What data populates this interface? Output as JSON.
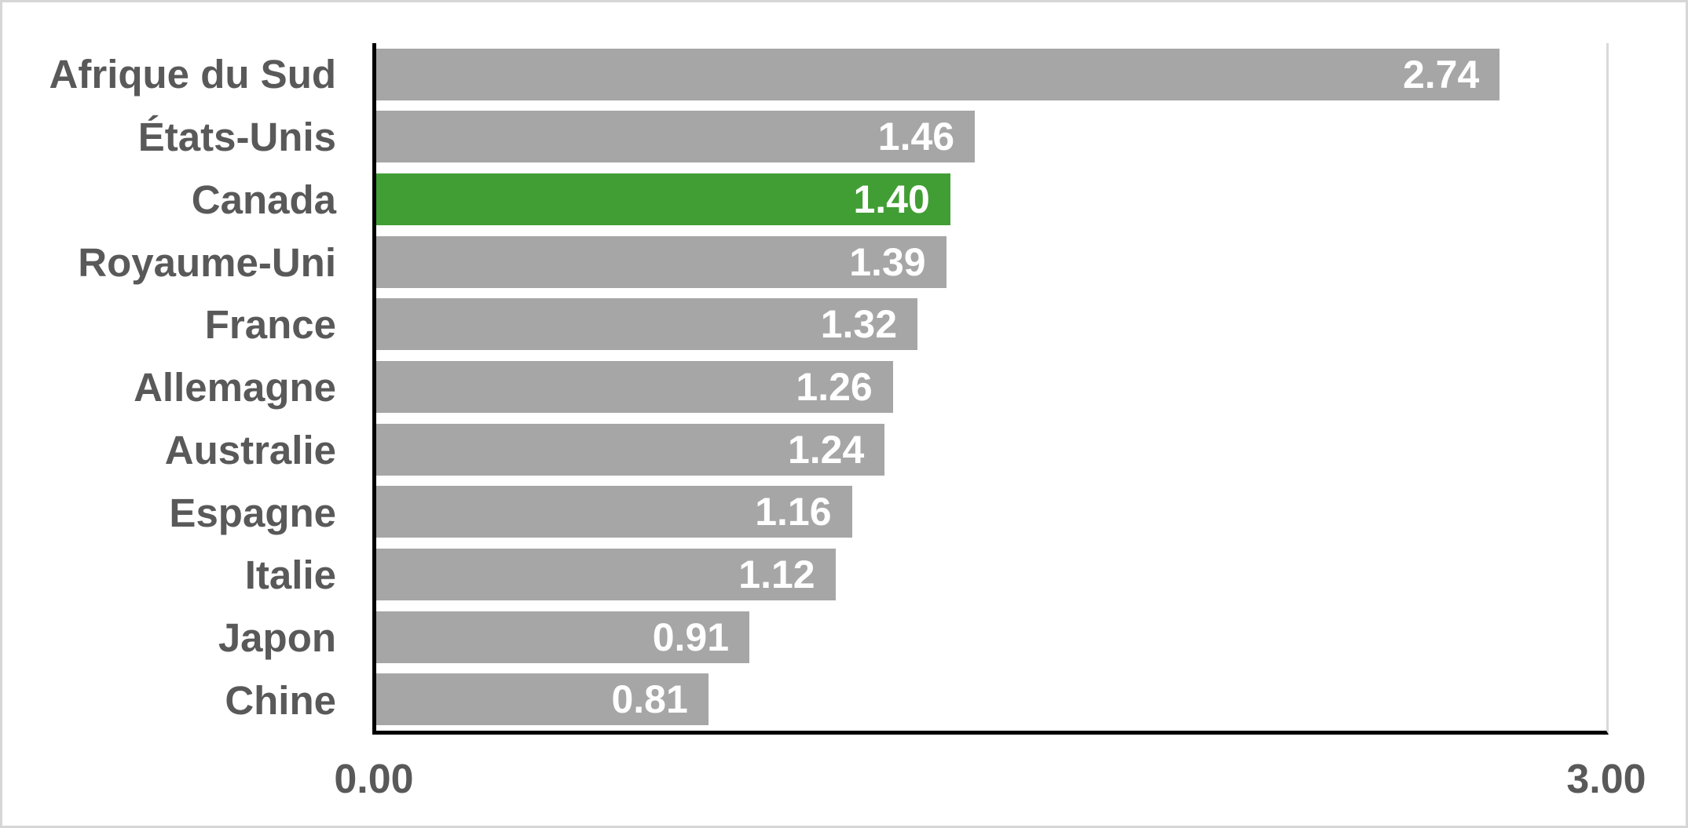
{
  "chart_data": {
    "type": "bar",
    "orientation": "horizontal",
    "title": "",
    "categories": [
      "Afrique du Sud",
      "États-Unis",
      "Canada",
      "Royaume-Uni",
      "France",
      "Allemagne",
      "Australie",
      "Espagne",
      "Italie",
      "Japon",
      "Chine"
    ],
    "values": [
      2.74,
      1.46,
      1.4,
      1.39,
      1.32,
      1.26,
      1.24,
      1.16,
      1.12,
      0.91,
      0.81
    ],
    "value_labels": [
      "2.74",
      "1.46",
      "1.40",
      "1.39",
      "1.32",
      "1.26",
      "1.24",
      "1.16",
      "1.12",
      "0.91",
      "0.81"
    ],
    "highlight_category": "Canada",
    "highlight_index": 2,
    "xlim": [
      0,
      3
    ],
    "x_axis": {
      "min_label": "0.00",
      "max_label": "3.00"
    },
    "grid": false,
    "legend": "none",
    "colors": {
      "bar": "#A6A6A6",
      "highlight_bar": "#419E34",
      "category_text": "#595959",
      "value_text": "#FFFFFF",
      "axis_line": "#000000",
      "plot_right_border": "#D9D9D9",
      "frame_border": "#D6D6D6",
      "background": "#FFFFFF"
    }
  }
}
